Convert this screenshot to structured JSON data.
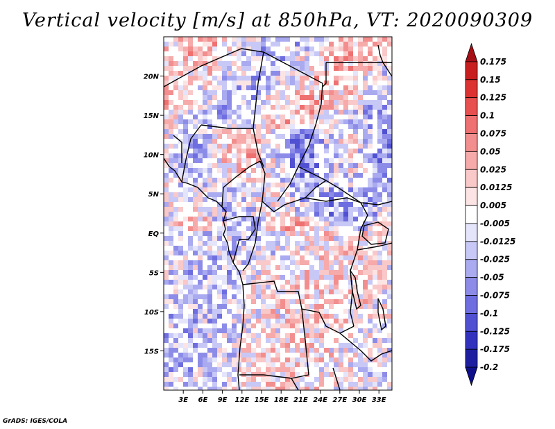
{
  "title": "Vertical velocity [m/s] at 850hPa, VT: 2020090309",
  "credit": "GrADS: IGES/COLA",
  "map": {
    "lon_range": [
      0,
      35
    ],
    "lat_range": [
      -20,
      25
    ],
    "lat_ticks": [
      {
        "value": 20,
        "label": "20N"
      },
      {
        "value": 15,
        "label": "15N"
      },
      {
        "value": 10,
        "label": "10N"
      },
      {
        "value": 5,
        "label": "5N"
      },
      {
        "value": 0,
        "label": "EQ"
      },
      {
        "value": -5,
        "label": "5S"
      },
      {
        "value": -10,
        "label": "10S"
      },
      {
        "value": -15,
        "label": "15S"
      }
    ],
    "lon_ticks": [
      {
        "value": 3,
        "label": "3E"
      },
      {
        "value": 6,
        "label": "6E"
      },
      {
        "value": 9,
        "label": "9E"
      },
      {
        "value": 12,
        "label": "12E"
      },
      {
        "value": 15,
        "label": "15E"
      },
      {
        "value": 18,
        "label": "18E"
      },
      {
        "value": 21,
        "label": "21E"
      },
      {
        "value": 24,
        "label": "24E"
      },
      {
        "value": 27,
        "label": "27E"
      },
      {
        "value": 30,
        "label": "30E"
      },
      {
        "value": 33,
        "label": "33E"
      }
    ]
  },
  "colorbar": {
    "levels": [
      "0.175",
      "0.15",
      "0.125",
      "0.1",
      "0.075",
      "0.05",
      "0.025",
      "0.0125",
      "0.005",
      "-0.005",
      "-0.0125",
      "-0.025",
      "-0.05",
      "-0.075",
      "-0.1",
      "-0.125",
      "-0.175",
      "-0.2"
    ],
    "colors": [
      "#a50f15",
      "#c81e1e",
      "#dc3232",
      "#e85050",
      "#ef7070",
      "#f28e8e",
      "#f6aaaa",
      "#f9c8c8",
      "#fce4e4",
      "#ffffff",
      "#e4e4fa",
      "#c8c8f6",
      "#aaaaf0",
      "#8c8ce8",
      "#6e6ee0",
      "#5050d2",
      "#3232be",
      "#1e1ea0",
      "#0f0f8c"
    ]
  }
}
